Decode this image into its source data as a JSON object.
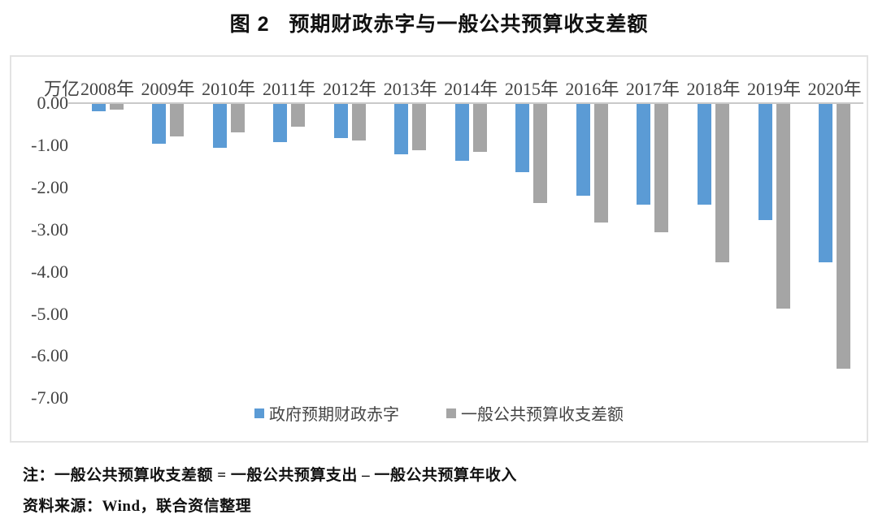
{
  "title": "图 2   预期财政赤字与一般公共预算收支差额",
  "chart": {
    "unit_label": "万亿",
    "y_tick_labels": [
      "0.00",
      "-1.00",
      "-2.00",
      "-3.00",
      "-4.00",
      "-5.00",
      "-6.00",
      "-7.00"
    ],
    "axis_text_color": "#444444",
    "frame_border_color": "#e3e3e3",
    "zero_line_color": "#c9c9c9"
  },
  "chart_data": {
    "type": "bar",
    "categories": [
      "2008年",
      "2009年",
      "2010年",
      "2011年",
      "2012年",
      "2013年",
      "2014年",
      "2015年",
      "2016年",
      "2017年",
      "2018年",
      "2019年",
      "2020年"
    ],
    "series": [
      {
        "name": "政府预期财政赤字",
        "color": "#5B9BD5",
        "values": [
          -0.18,
          -0.95,
          -1.05,
          -0.9,
          -0.8,
          -1.2,
          -1.35,
          -1.62,
          -2.18,
          -2.38,
          -2.38,
          -2.76,
          -3.76
        ]
      },
      {
        "name": "一般公共预算收支差额",
        "color": "#A5A5A5",
        "values": [
          -0.13,
          -0.78,
          -0.68,
          -0.54,
          -0.87,
          -1.1,
          -1.14,
          -2.36,
          -2.82,
          -3.05,
          -3.75,
          -4.85,
          -6.28
        ]
      }
    ],
    "title": "图 2   预期财政赤字与一般公共预算收支差额",
    "xlabel": "",
    "ylabel": "万亿",
    "ylim": [
      -7.5,
      0
    ],
    "y_tick_step": 1.0,
    "grid": false,
    "legend_position": "bottom"
  },
  "notes": {
    "note1": "注：一般公共预算收支差额 = 一般公共预算支出 – 一般公共预算年收入",
    "source": "资料来源：Wind，联合资信整理"
  }
}
